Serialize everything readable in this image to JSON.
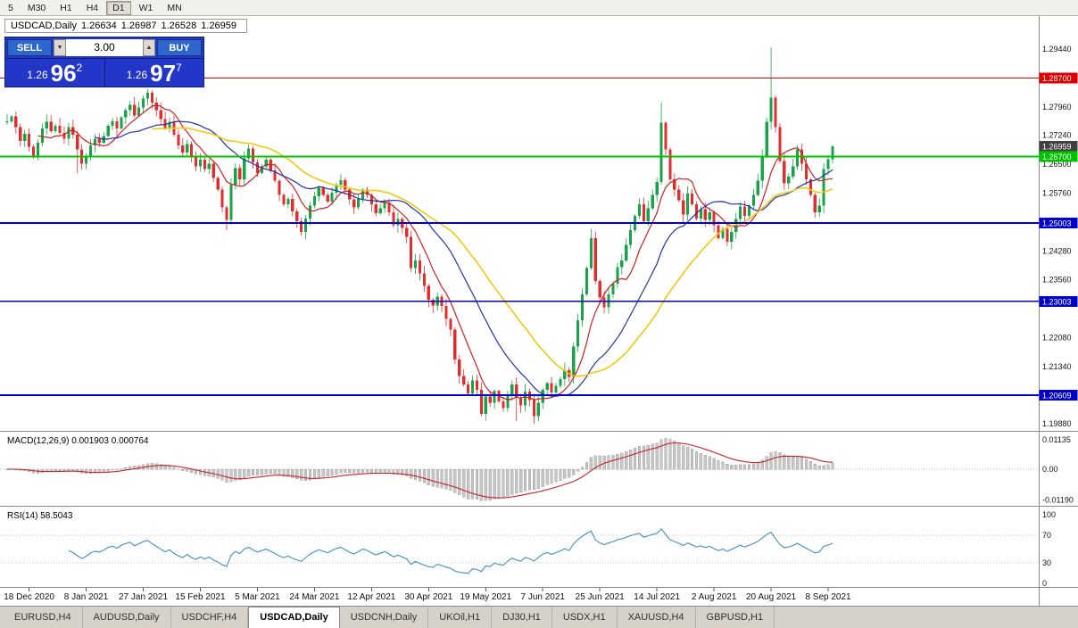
{
  "toolbar": {
    "periods": [
      {
        "label": "5",
        "active": false
      },
      {
        "label": "M30",
        "active": false
      },
      {
        "label": "H1",
        "active": false
      },
      {
        "label": "H4",
        "active": false
      },
      {
        "label": "D1",
        "active": true
      },
      {
        "label": "W1",
        "active": false
      },
      {
        "label": "MN",
        "active": false
      }
    ]
  },
  "chart": {
    "symbol": "USDCAD,Daily",
    "open": "1.26634",
    "high": "1.26987",
    "low": "1.26528",
    "close": "1.26959"
  },
  "trade_panel": {
    "sell_label": "SELL",
    "buy_label": "BUY",
    "volume": "3.00",
    "bid": {
      "prefix": "1.26",
      "big": "96",
      "sup": "2"
    },
    "ask": {
      "prefix": "1.26",
      "big": "97",
      "sup": "7"
    }
  },
  "indicators": {
    "macd": {
      "label": "MACD(12,26,9)",
      "value_main": "0.001903",
      "value_signal": "0.000764",
      "fast": 12,
      "slow": 26,
      "signal": 9,
      "axis": [
        {
          "label": "0.01135",
          "value": 0.01135
        },
        {
          "label": "0.00",
          "value": 0
        },
        {
          "label": "-0.01190",
          "value": -0.0119
        }
      ]
    },
    "rsi": {
      "label": "RSI(14)",
      "value": "58.5043",
      "period": 14,
      "levels": [
        70,
        30
      ],
      "axis": [
        {
          "label": "100",
          "value": 100
        },
        {
          "label": "70",
          "value": 70
        },
        {
          "label": "30",
          "value": 30
        },
        {
          "label": "0",
          "value": 0
        }
      ]
    }
  },
  "chart_data": {
    "type": "candlestick",
    "symbol": "USDCAD",
    "timeframe": "Daily",
    "title": "USDCAD,Daily",
    "ylim": [
      1.19766,
      1.30282
    ],
    "current_bar": {
      "open": 1.26634,
      "high": 1.26987,
      "low": 1.26528,
      "close": 1.26959
    },
    "closes": [
      1.276,
      1.2772,
      1.2745,
      1.271,
      1.2728,
      1.2695,
      1.2668,
      1.2705,
      1.2742,
      1.2758,
      1.2735,
      1.2748,
      1.273,
      1.2715,
      1.2745,
      1.2725,
      1.2688,
      1.2652,
      1.267,
      1.2698,
      1.2715,
      1.2705,
      1.2722,
      1.2748,
      1.276,
      1.2742,
      1.277,
      1.2788,
      1.2802,
      1.2775,
      1.2795,
      1.2818,
      1.2832,
      1.2808,
      1.2788,
      1.2765,
      1.2742,
      1.2758,
      1.2725,
      1.2698,
      1.268,
      1.2702,
      1.2668,
      1.2645,
      1.2662,
      1.2638,
      1.2652,
      1.2615,
      1.2585,
      1.254,
      1.2508,
      1.2598,
      1.264,
      1.2612,
      1.2665,
      1.269,
      1.2655,
      1.2628,
      1.2645,
      1.2662,
      1.2635,
      1.2608,
      1.2572,
      1.2548,
      1.2562,
      1.253,
      1.2505,
      1.2478,
      1.2512,
      1.2545,
      1.2568,
      1.259,
      1.2572,
      1.2555,
      1.2578,
      1.2598,
      1.261,
      1.2585,
      1.256,
      1.254,
      1.2562,
      1.2585,
      1.2572,
      1.2548,
      1.2525,
      1.2538,
      1.2552,
      1.2528,
      1.2495,
      1.251,
      1.2488,
      1.2465,
      1.2385,
      1.2405,
      1.2372,
      1.234,
      1.2305,
      1.229,
      1.2312,
      1.2288,
      1.2255,
      1.2228,
      1.2152,
      1.211,
      1.2088,
      1.2065,
      1.2098,
      1.2075,
      1.2013,
      1.2058,
      1.2042,
      1.2072,
      1.2045,
      1.2028,
      1.2062,
      1.2088,
      1.2055,
      1.2035,
      1.207,
      1.2048,
      1.2008,
      1.2042,
      1.2075,
      1.2092,
      1.2068,
      1.2085,
      1.2102,
      1.2125,
      1.2108,
      1.2185,
      1.2252,
      1.2318,
      1.2385,
      1.2462,
      1.2352,
      1.231,
      1.2285,
      1.2318,
      1.2345,
      1.2388,
      1.2405,
      1.2445,
      1.2482,
      1.2518,
      1.2548,
      1.2505,
      1.2538,
      1.2572,
      1.2605,
      1.2756,
      1.2688,
      1.2612,
      1.2585,
      1.2558,
      1.2522,
      1.2575,
      1.2548,
      1.2512,
      1.2535,
      1.2508,
      1.2528,
      1.2495,
      1.2462,
      1.2485,
      1.2452,
      1.2478,
      1.251,
      1.2542,
      1.2518,
      1.2545,
      1.2572,
      1.2608,
      1.2672,
      1.2758,
      1.282,
      1.2745,
      1.2658,
      1.2602,
      1.2618,
      1.2645,
      1.2688,
      1.2652,
      1.2612,
      1.2572,
      1.2528,
      1.2545,
      1.2638,
      1.2663,
      1.26959
    ],
    "overrides": {
      "16": {
        "l": 1.2628
      },
      "50": {
        "l": 1.2482
      },
      "116": {
        "l": 1.1995
      },
      "120": {
        "l": 1.1988
      },
      "133": {
        "h": 1.2485
      },
      "149": {
        "h": 1.2807
      },
      "174": {
        "h": 1.2948
      },
      "188": {
        "o": 1.26634,
        "h": 1.26987,
        "l": 1.26528
      }
    },
    "moving_averages": [
      {
        "period": 8,
        "color": "#cc2020"
      },
      {
        "period": 21,
        "color": "#2032a8"
      },
      {
        "period": 34,
        "color": "#f2c80f"
      }
    ],
    "levels": [
      {
        "price": 1.287,
        "label": "1.28700",
        "color": "#dd0000",
        "width": 1.2,
        "line": true
      },
      {
        "price": 1.26959,
        "label": "1.26959",
        "color": "#404040",
        "width": 0,
        "line": false
      },
      {
        "price": 1.267,
        "label": "1.26700",
        "color": "#00c400",
        "width": 2,
        "line": true
      },
      {
        "price": 1.25003,
        "label": "1.25003",
        "color": "#0000cc",
        "width": 1.6,
        "line": true
      },
      {
        "price": 1.23003,
        "label": "1.23003",
        "color": "#0000cc",
        "width": 1.6,
        "line": true
      },
      {
        "price": 1.20609,
        "label": "1.20609",
        "color": "#0000cc",
        "width": 1.6,
        "line": true
      }
    ],
    "price_axis_labels": [
      "1.29440",
      "1.27960",
      "1.27240",
      "1.26500",
      "1.25760",
      "1.24280",
      "1.23560",
      "1.22080",
      "1.21340",
      "1.19880"
    ],
    "date_ticks": {
      "first_index": 5,
      "step": 13,
      "labels": [
        "18 Dec 2020",
        "8 Jan 2021",
        "27 Jan 2021",
        "15 Feb 2021",
        "5 Mar 2021",
        "24 Mar 2021",
        "12 Apr 2021",
        "30 Apr 2021",
        "19 May 2021",
        "7 Jun 2021",
        "25 Jun 2021",
        "14 Jul 2021",
        "2 Aug 2021",
        "20 Aug 2021",
        "8 Sep 2021"
      ]
    }
  },
  "tabs": [
    {
      "label": "EURUSD,H4",
      "active": false
    },
    {
      "label": "AUDUSD,Daily",
      "active": false
    },
    {
      "label": "USDCHF,H4",
      "active": false
    },
    {
      "label": "USDCAD,Daily",
      "active": true
    },
    {
      "label": "USDCNH,Daily",
      "active": false
    },
    {
      "label": "UKOil,H1",
      "active": false
    },
    {
      "label": "DJ30,H1",
      "active": false
    },
    {
      "label": "USDX,H1",
      "active": false
    },
    {
      "label": "XAUUSD,H4",
      "active": false
    },
    {
      "label": "GBPUSD,H1",
      "active": false
    }
  ],
  "colors": {
    "up": "#18a348",
    "down": "#e02e2e",
    "macd_bar": "#c6c6c6",
    "macd_bar_stroke": "#9a9a9a",
    "macd_signal": "#cc2020",
    "rsi_line": "#3f8fc4",
    "axis_text": "#141414",
    "separator": "#8a8a8a"
  }
}
